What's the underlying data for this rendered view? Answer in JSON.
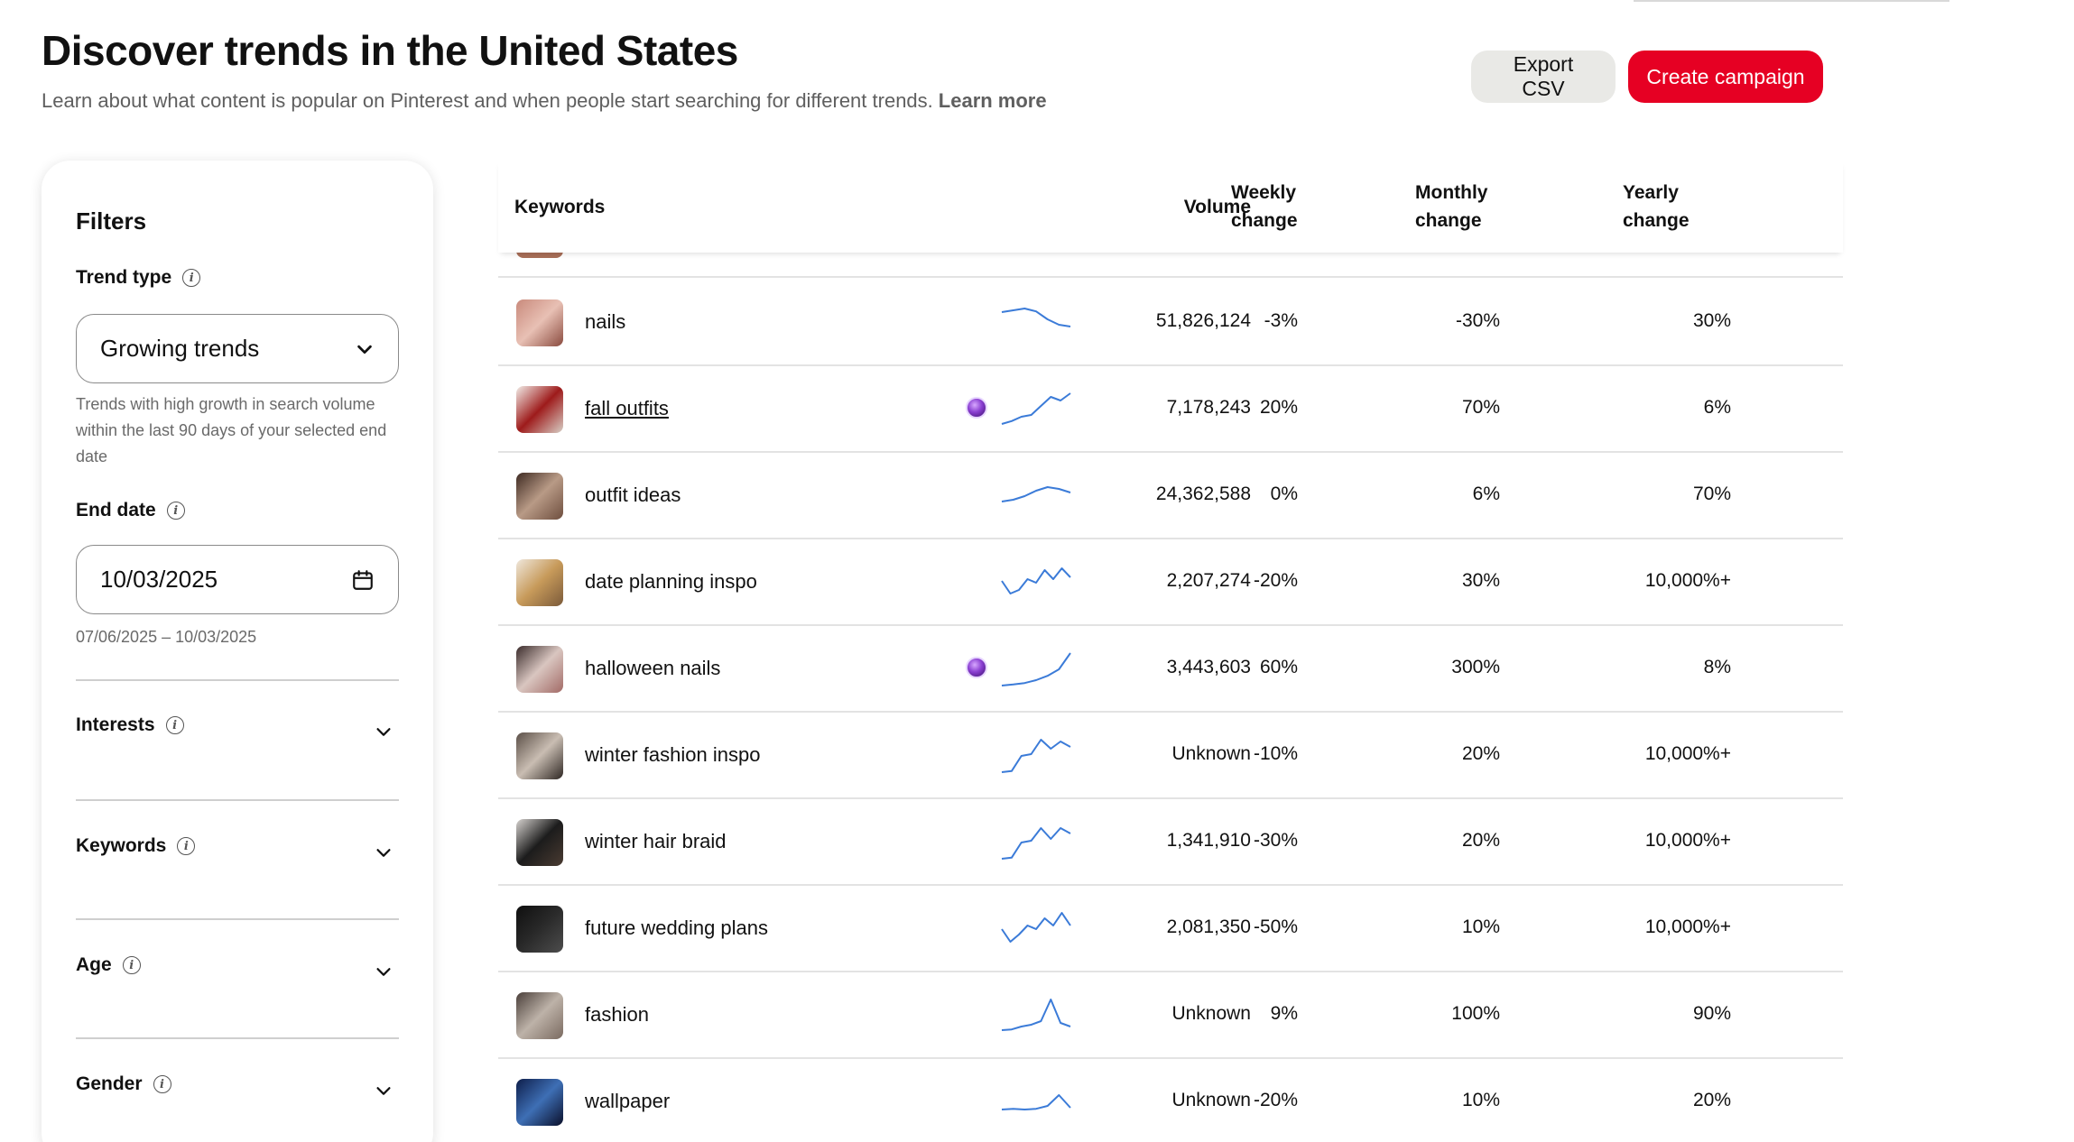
{
  "header": {
    "title": "Discover trends in the United States",
    "subtitle": "Learn about what content is popular on Pinterest and when people start searching for different trends.",
    "learn_more": "Learn more"
  },
  "actions": {
    "export_label": "Export CSV",
    "create_label": "Create campaign"
  },
  "filters": {
    "title": "Filters",
    "trend_type_label": "Trend type",
    "trend_type_value": "Growing trends",
    "trend_type_help": "Trends with high growth in search volume within the last 90 days of your selected end date",
    "end_date_label": "End date",
    "end_date_value": "10/03/2025",
    "end_date_range": "07/06/2025 – 10/03/2025",
    "sections": [
      "Interests",
      "Keywords",
      "Age",
      "Gender"
    ]
  },
  "table": {
    "columns": {
      "keywords": "Keywords",
      "volume": "Volume",
      "weekly_1": "Weekly",
      "weekly_2": "change",
      "monthly_1": "Monthly",
      "monthly_2": "change",
      "yearly_1": "Yearly",
      "yearly_2": "change"
    },
    "rows": [
      {
        "keyword": "nails",
        "volume": "51,826,124",
        "weekly": "-3%",
        "monthly": "-30%",
        "yearly": "30%",
        "badge": false,
        "link": false,
        "spark": [
          0.8,
          0.85,
          0.9,
          0.82,
          0.6,
          0.45,
          0.4
        ],
        "thumb": [
          "#c98a7c",
          "#e8c0b4",
          "#8a4b3f"
        ]
      },
      {
        "keyword": "fall outfits",
        "volume": "7,178,243",
        "weekly": "20%",
        "monthly": "70%",
        "yearly": "6%",
        "badge": true,
        "link": true,
        "spark": [
          0.1,
          0.18,
          0.3,
          0.35,
          0.6,
          0.85,
          0.75,
          0.95
        ],
        "thumb": [
          "#f2ede8",
          "#9e1b1b",
          "#d8cfc6"
        ]
      },
      {
        "keyword": "outfit ideas",
        "volume": "24,362,588",
        "weekly": "0%",
        "monthly": "6%",
        "yearly": "70%",
        "badge": false,
        "link": false,
        "spark": [
          0.35,
          0.4,
          0.5,
          0.65,
          0.75,
          0.7,
          0.6
        ],
        "thumb": [
          "#3e2a22",
          "#b89a86",
          "#6e4e3e"
        ]
      },
      {
        "keyword": "date planning inspo",
        "volume": "2,207,274",
        "weekly": "-20%",
        "monthly": "30%",
        "yearly": "10,000%+",
        "badge": false,
        "link": false,
        "spark": [
          0.55,
          0.2,
          0.3,
          0.6,
          0.5,
          0.85,
          0.6,
          0.9,
          0.65
        ],
        "thumb": [
          "#efe7dc",
          "#c79a5a",
          "#7b5a3a"
        ]
      },
      {
        "keyword": "halloween nails",
        "volume": "3,443,603",
        "weekly": "60%",
        "monthly": "300%",
        "yearly": "8%",
        "badge": true,
        "link": false,
        "spark": [
          0.05,
          0.08,
          0.12,
          0.2,
          0.32,
          0.5,
          0.95
        ],
        "thumb": [
          "#3a2b2b",
          "#d9c6c0",
          "#a26a66"
        ]
      },
      {
        "keyword": "winter fashion inspo",
        "volume": "Unknown",
        "weekly": "-10%",
        "monthly": "20%",
        "yearly": "10,000%+",
        "badge": false,
        "link": false,
        "spark": [
          0.05,
          0.08,
          0.5,
          0.55,
          0.95,
          0.7,
          0.9,
          0.75
        ],
        "thumb": [
          "#5b4f47",
          "#c9bdb2",
          "#2e2723"
        ]
      },
      {
        "keyword": "winter hair braid",
        "volume": "1,341,910",
        "weekly": "-30%",
        "monthly": "20%",
        "yearly": "10,000%+",
        "badge": false,
        "link": false,
        "spark": [
          0.05,
          0.08,
          0.5,
          0.55,
          0.9,
          0.6,
          0.9,
          0.75
        ],
        "thumb": [
          "#d6d2cf",
          "#1c1c1c",
          "#4a3b32"
        ]
      },
      {
        "keyword": "future wedding plans",
        "volume": "2,081,350",
        "weekly": "-50%",
        "monthly": "10%",
        "yearly": "10,000%+",
        "badge": false,
        "link": false,
        "spark": [
          0.5,
          0.15,
          0.35,
          0.6,
          0.5,
          0.8,
          0.6,
          0.95,
          0.6
        ],
        "thumb": [
          "#0f0f0f",
          "#2a2a2a",
          "#4d4d4d"
        ]
      },
      {
        "keyword": "fashion",
        "volume": "Unknown",
        "weekly": "9%",
        "monthly": "100%",
        "yearly": "90%",
        "badge": false,
        "link": false,
        "spark": [
          0.1,
          0.12,
          0.2,
          0.25,
          0.35,
          0.95,
          0.3,
          0.2
        ],
        "thumb": [
          "#4a3f3a",
          "#bdb2a8",
          "#7a6a60"
        ]
      },
      {
        "keyword": "wallpaper",
        "volume": "Unknown",
        "weekly": "-20%",
        "monthly": "10%",
        "yearly": "20%",
        "badge": false,
        "link": false,
        "spark": [
          0.3,
          0.32,
          0.3,
          0.32,
          0.4,
          0.7,
          0.35
        ],
        "thumb": [
          "#0e1e4a",
          "#3e6fb5",
          "#0a0f2a"
        ]
      }
    ]
  },
  "colors": {
    "accent": "#e60023",
    "sparkline": "#3b7bd8",
    "secondary_button": "#e9e9e6"
  }
}
